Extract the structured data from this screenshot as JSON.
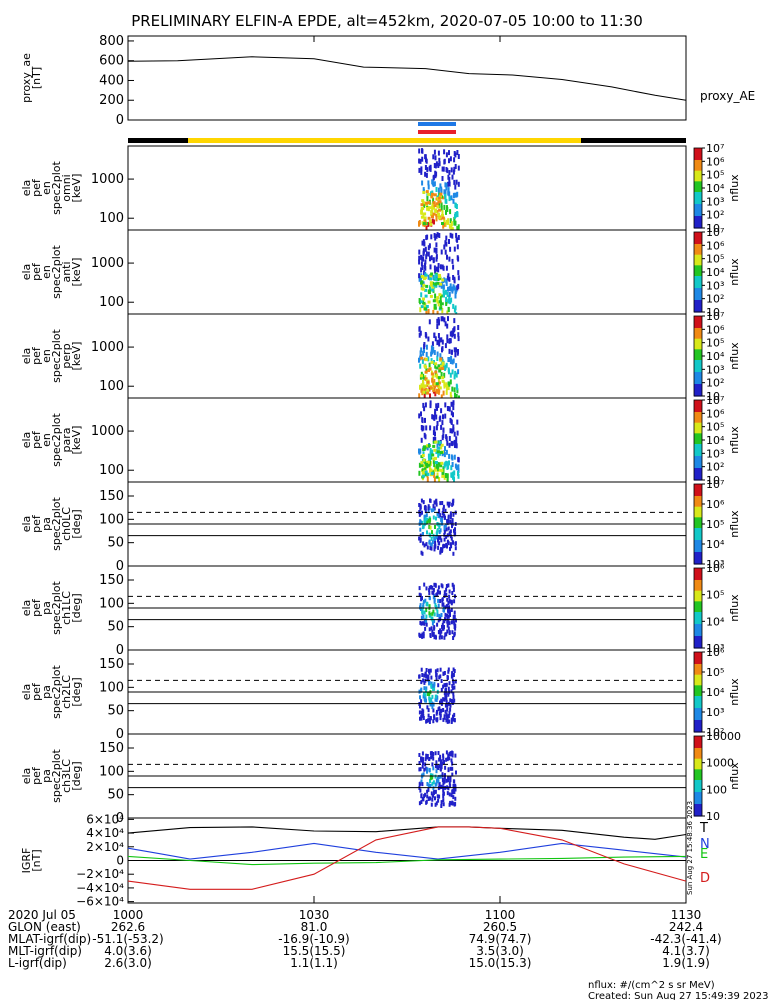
{
  "title": "PRELIMINARY ELFIN-A EPDE, alt=452km, 2020-07-05 10:00 to 11:30",
  "colors": {
    "ae_line": "#000000",
    "sci_bar_blue": "#1e78e6",
    "sci_bar_red": "#e8202a",
    "bar_yellow": "#ffd600",
    "bar_black": "#000000",
    "bt": "#000000",
    "bn": "#1f3fdd",
    "be": "#11c511",
    "bd": "#d41c1c"
  },
  "chart_data": [
    {
      "type": "line",
      "id": "proxy_ae",
      "ylabel": [
        "proxy_ae",
        "[nT]"
      ],
      "legend": "proxy_AE",
      "ylim": [
        0,
        850
      ],
      "yticks": [
        0,
        200,
        400,
        600,
        800
      ],
      "x_min": [
        0,
        8,
        20,
        30,
        38,
        48,
        55,
        62,
        70,
        78,
        85,
        90
      ],
      "y": [
        595,
        600,
        640,
        620,
        535,
        520,
        470,
        455,
        410,
        335,
        250,
        200
      ]
    },
    {
      "type": "heatmap",
      "id": "en_omni",
      "ylabel": [
        "ela",
        "pef",
        "en",
        "spec2plot",
        "omni",
        "[keV]"
      ],
      "ylog": true,
      "yticks": [
        100,
        1000
      ],
      "zlabel": "nflux",
      "zlog": true,
      "zticks": [
        "10",
        "10²",
        "10³",
        "10⁴",
        "10⁵",
        "10⁶",
        "10⁷"
      ]
    },
    {
      "type": "heatmap",
      "id": "en_anti",
      "ylabel": [
        "ela",
        "pef",
        "en",
        "spec2plot",
        "anti",
        "[keV]"
      ],
      "ylog": true,
      "yticks": [
        100,
        1000
      ],
      "zlabel": "nflux",
      "zticks": [
        "10",
        "10²",
        "10³",
        "10⁴",
        "10⁵",
        "10⁶",
        "10⁷"
      ]
    },
    {
      "type": "heatmap",
      "id": "en_perp",
      "ylabel": [
        "ela",
        "pef",
        "en",
        "spec2plot",
        "perp",
        "[keV]"
      ],
      "ylog": true,
      "yticks": [
        100,
        1000
      ],
      "zlabel": "nflux",
      "zticks": [
        "10",
        "10²",
        "10³",
        "10⁴",
        "10⁵",
        "10⁶",
        "10⁷"
      ]
    },
    {
      "type": "heatmap",
      "id": "en_para",
      "ylabel": [
        "ela",
        "pef",
        "en",
        "spec2plot",
        "para",
        "[keV]"
      ],
      "ylog": true,
      "yticks": [
        100,
        1000
      ],
      "zlabel": "nflux",
      "zticks": [
        "10",
        "10²",
        "10³",
        "10⁴",
        "10⁵",
        "10⁶",
        "10⁷"
      ]
    },
    {
      "type": "heatmap",
      "id": "pa_ch0",
      "ylabel": [
        "ela",
        "pef",
        "pa",
        "spec2plot",
        "ch0LC",
        "[deg]"
      ],
      "ylim": [
        0,
        180
      ],
      "yticks": [
        0,
        50,
        100,
        150
      ],
      "ref_solid": [
        65,
        90
      ],
      "ref_dashed": [
        115
      ],
      "zlabel": "nflux",
      "zticks": [
        "10³",
        "10⁴",
        "10⁵",
        "10⁶",
        "10⁷"
      ]
    },
    {
      "type": "heatmap",
      "id": "pa_ch1",
      "ylabel": [
        "ela",
        "pef",
        "pa",
        "spec2plot",
        "ch1LC",
        "[deg]"
      ],
      "ylim": [
        0,
        180
      ],
      "yticks": [
        0,
        50,
        100,
        150
      ],
      "ref_solid": [
        65,
        90
      ],
      "ref_dashed": [
        115
      ],
      "zlabel": "nflux",
      "zticks": [
        "10³",
        "10⁴",
        "10⁵",
        "10⁶"
      ]
    },
    {
      "type": "heatmap",
      "id": "pa_ch2",
      "ylabel": [
        "ela",
        "pef",
        "pa",
        "spec2plot",
        "ch2LC",
        "[deg]"
      ],
      "ylim": [
        0,
        180
      ],
      "yticks": [
        0,
        50,
        100,
        150
      ],
      "ref_solid": [
        65,
        90
      ],
      "ref_dashed": [
        115
      ],
      "zlabel": "nflux",
      "zticks": [
        "10²",
        "10³",
        "10⁴",
        "10⁵",
        "10⁶"
      ]
    },
    {
      "type": "heatmap",
      "id": "pa_ch3",
      "ylabel": [
        "ela",
        "pef",
        "pa",
        "spec2plot",
        "ch3LC",
        "[deg]"
      ],
      "ylim": [
        0,
        180
      ],
      "yticks": [
        0,
        50,
        100,
        150
      ],
      "ref_solid": [
        65,
        90
      ],
      "ref_dashed": [
        115
      ],
      "zlabel": "nflux",
      "zticks": [
        "10",
        "100",
        "1000",
        "10000"
      ]
    },
    {
      "type": "line",
      "id": "igrf",
      "ylabel": [
        "IGRF",
        "[nT]"
      ],
      "ylim": [
        -62000,
        62000
      ],
      "yticks": [
        "6×10⁴",
        "4×10⁴",
        "2×10⁴",
        "0",
        "−2×10⁴",
        "−4×10⁴",
        "−6×10⁴"
      ],
      "series": [
        {
          "name": "T",
          "x_min": [
            0,
            10,
            20,
            30,
            40,
            50,
            55,
            60,
            70,
            80,
            85,
            90
          ],
          "y": [
            40000,
            48000,
            49000,
            43000,
            42000,
            49000,
            49000,
            47000,
            44000,
            34000,
            31000,
            38000
          ]
        },
        {
          "name": "N",
          "x_min": [
            0,
            5,
            10,
            20,
            30,
            40,
            50,
            60,
            70,
            80,
            90
          ],
          "y": [
            18000,
            10000,
            2000,
            12000,
            25000,
            12000,
            2000,
            12000,
            25000,
            15000,
            5000
          ]
        },
        {
          "name": "E",
          "x_min": [
            0,
            10,
            20,
            30,
            40,
            50,
            60,
            70,
            80,
            90
          ],
          "y": [
            6000,
            0,
            -6000,
            -4000,
            -3000,
            1000,
            2000,
            3000,
            5000,
            6000
          ]
        },
        {
          "name": "D",
          "x_min": [
            0,
            10,
            20,
            30,
            40,
            50,
            55,
            60,
            70,
            80,
            90
          ],
          "y": [
            -30000,
            -42000,
            -42000,
            -20000,
            30000,
            49000,
            49000,
            47000,
            30000,
            -5000,
            -30000
          ]
        }
      ],
      "stamp": "Sun Aug 27 15:48:36 2023"
    }
  ],
  "time_axis": {
    "ticks": [
      "1000",
      "1030",
      "1100",
      "1130"
    ],
    "tick_minutes": [
      0,
      30,
      60,
      90
    ],
    "rows": [
      {
        "label": "2020 Jul 05",
        "values": [
          "1000",
          "1030",
          "1100",
          "1130"
        ]
      },
      {
        "label": "GLON (east)",
        "values": [
          "262.6",
          "81.0",
          "260.5",
          "242.4"
        ]
      },
      {
        "label": "MLAT-igrf(dip)",
        "values": [
          "-51.1(-53.2)",
          "-16.9(-10.9)",
          "74.9(74.7)",
          "-42.3(-41.4)"
        ]
      },
      {
        "label": "MLT-igrf(dip)",
        "values": [
          "4.0(3.6)",
          "15.5(15.5)",
          "3.5(3.0)",
          "4.1(3.7)"
        ]
      },
      {
        "label": "L-igrf(dip)",
        "values": [
          "2.6(3.0)",
          "1.1(1.1)",
          "15.0(15.3)",
          "1.9(1.9)"
        ]
      }
    ]
  },
  "footer": {
    "units": "nflux: #/(cm^2 s sr MeV)",
    "created": "Created: Sun Aug 27 15:49:39 2023"
  }
}
